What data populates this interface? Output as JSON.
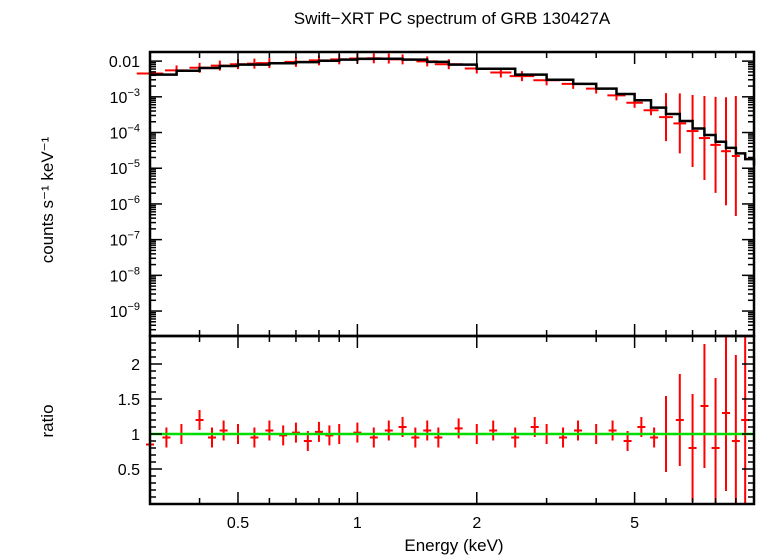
{
  "chart_data": [
    {
      "type": "line",
      "panel": "spectrum",
      "title": "Swift−XRT PC spectrum of GRB 130427A",
      "xlabel": "",
      "ylabel": "counts s⁻¹ keV⁻¹",
      "xscale": "log",
      "yscale": "log",
      "xlim": [
        0.3,
        10
      ],
      "ylim": [
        2e-10,
        0.018
      ],
      "yticks": [
        {
          "value": 0.01,
          "label": "0.01"
        },
        {
          "value": 0.001,
          "base": "10",
          "exp": "−3"
        },
        {
          "value": 0.0001,
          "base": "10",
          "exp": "−4"
        },
        {
          "value": 1e-05,
          "base": "10",
          "exp": "−5"
        },
        {
          "value": 1e-06,
          "base": "10",
          "exp": "−6"
        },
        {
          "value": 1e-07,
          "base": "10",
          "exp": "−7"
        },
        {
          "value": 1e-08,
          "base": "10",
          "exp": "−8"
        },
        {
          "value": 1e-09,
          "base": "10",
          "exp": "−9"
        }
      ],
      "series": [
        {
          "role": "data",
          "color": "#ff0000",
          "x": [
            0.3,
            0.35,
            0.4,
            0.45,
            0.5,
            0.55,
            0.6,
            0.7,
            0.8,
            0.9,
            1.0,
            1.1,
            1.2,
            1.3,
            1.5,
            1.7,
            2.0,
            2.3,
            2.6,
            3.0,
            3.5,
            4.0,
            4.5,
            5.0,
            5.5,
            6.0,
            6.5,
            7.0,
            7.5,
            8.0,
            8.5,
            9.0
          ],
          "y": [
            0.0045,
            0.0055,
            0.0065,
            0.0075,
            0.0082,
            0.0085,
            0.0088,
            0.0095,
            0.0105,
            0.0112,
            0.0118,
            0.012,
            0.0118,
            0.0112,
            0.0098,
            0.0082,
            0.0062,
            0.0048,
            0.0038,
            0.0029,
            0.0023,
            0.0017,
            0.0011,
            0.00068,
            0.00042,
            0.00027,
            0.00018,
            0.00011,
            7e-05,
            4.5e-05,
            3e-05,
            2.2e-05
          ]
        },
        {
          "role": "model",
          "color": "#000000",
          "x": [
            0.3,
            0.35,
            0.4,
            0.45,
            0.5,
            0.6,
            0.7,
            0.8,
            0.9,
            1.0,
            1.1,
            1.2,
            1.3,
            1.5,
            1.7,
            2.0,
            2.5,
            3.0,
            3.5,
            4.0,
            4.5,
            5.0,
            5.5,
            6.0,
            6.5,
            7.0,
            7.5,
            8.0,
            8.5,
            9.0,
            9.5,
            10.0
          ],
          "y": [
            0.0042,
            0.0054,
            0.0064,
            0.0073,
            0.008,
            0.0087,
            0.0094,
            0.0103,
            0.011,
            0.0115,
            0.0117,
            0.0116,
            0.011,
            0.0095,
            0.008,
            0.0061,
            0.0042,
            0.003,
            0.0023,
            0.0017,
            0.0012,
            0.0008,
            0.0005,
            0.00033,
            0.00021,
            0.00013,
            8.5e-05,
            5.5e-05,
            3.7e-05,
            2.6e-05,
            1.8e-05,
            1.2e-05
          ]
        }
      ]
    },
    {
      "type": "line",
      "panel": "ratio",
      "title": "",
      "xlabel": "Energy (keV)",
      "ylabel": "ratio",
      "xscale": "log",
      "yscale": "linear",
      "xlim": [
        0.3,
        10
      ],
      "ylim": [
        0,
        2.4
      ],
      "xticks": [
        {
          "value": 0.5,
          "label": "0.5"
        },
        {
          "value": 1,
          "label": "1"
        },
        {
          "value": 2,
          "label": "2"
        },
        {
          "value": 5,
          "label": "5"
        }
      ],
      "yticks": [
        {
          "value": 0.5,
          "label": "0.5"
        },
        {
          "value": 1,
          "label": "1"
        },
        {
          "value": 1.5,
          "label": "1.5"
        },
        {
          "value": 2,
          "label": "2"
        }
      ],
      "series": [
        {
          "role": "data",
          "color": "#ff0000",
          "x": [
            0.3,
            0.33,
            0.36,
            0.4,
            0.43,
            0.46,
            0.5,
            0.55,
            0.6,
            0.65,
            0.7,
            0.75,
            0.8,
            0.85,
            0.9,
            1.0,
            1.1,
            1.2,
            1.3,
            1.4,
            1.5,
            1.6,
            1.8,
            2.0,
            2.2,
            2.5,
            2.8,
            3.0,
            3.3,
            3.6,
            4.0,
            4.4,
            4.8,
            5.2,
            5.6,
            6.0,
            6.5,
            7.0,
            7.5,
            8.0,
            8.5,
            9.0,
            9.5
          ],
          "y": [
            0.85,
            0.95,
            1.0,
            1.2,
            0.95,
            1.05,
            1.0,
            0.95,
            1.05,
            0.98,
            1.02,
            0.9,
            1.03,
            0.98,
            1.0,
            1.02,
            0.95,
            1.05,
            1.1,
            0.95,
            1.05,
            0.95,
            1.08,
            1.0,
            1.05,
            0.95,
            1.1,
            1.0,
            0.95,
            1.05,
            1.0,
            1.05,
            0.9,
            1.1,
            0.95,
            1.0,
            1.2,
            0.8,
            1.4,
            0.8,
            1.3,
            0.9,
            1.2
          ]
        },
        {
          "role": "reference",
          "color": "#00dd00",
          "x": [
            0.3,
            10
          ],
          "y": [
            1,
            1
          ]
        }
      ]
    }
  ]
}
